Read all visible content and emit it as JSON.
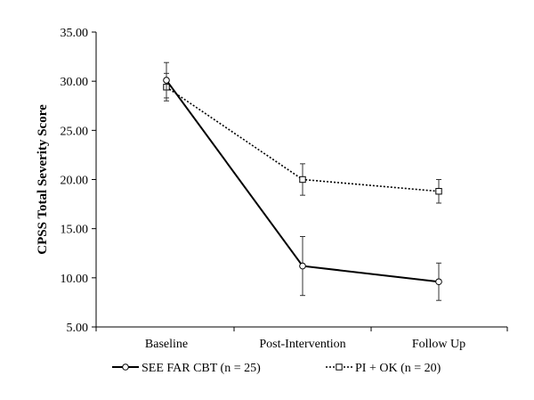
{
  "chart_data": {
    "type": "line",
    "title": "",
    "xlabel": "",
    "ylabel": "CPSS Total Severity Score",
    "categories": [
      "Baseline",
      "Post-Intervention",
      "Follow Up"
    ],
    "ylim": [
      5,
      35
    ],
    "yticks": [
      "5.00",
      "10.00",
      "15.00",
      "20.00",
      "25.00",
      "30.00",
      "35.00"
    ],
    "grid": false,
    "legend_position": "bottom",
    "series": [
      {
        "name": "SEE FAR CBT (n = 25)",
        "values": [
          30.1,
          11.2,
          9.6
        ],
        "error": [
          1.8,
          3.0,
          1.9
        ],
        "line_style": "solid",
        "marker": "circle",
        "color": "#000000"
      },
      {
        "name": "PI + OK (n = 20)",
        "values": [
          29.4,
          20.0,
          18.8
        ],
        "error": [
          1.4,
          1.6,
          1.2
        ],
        "line_style": "dotted",
        "marker": "square",
        "color": "#000000"
      }
    ]
  }
}
